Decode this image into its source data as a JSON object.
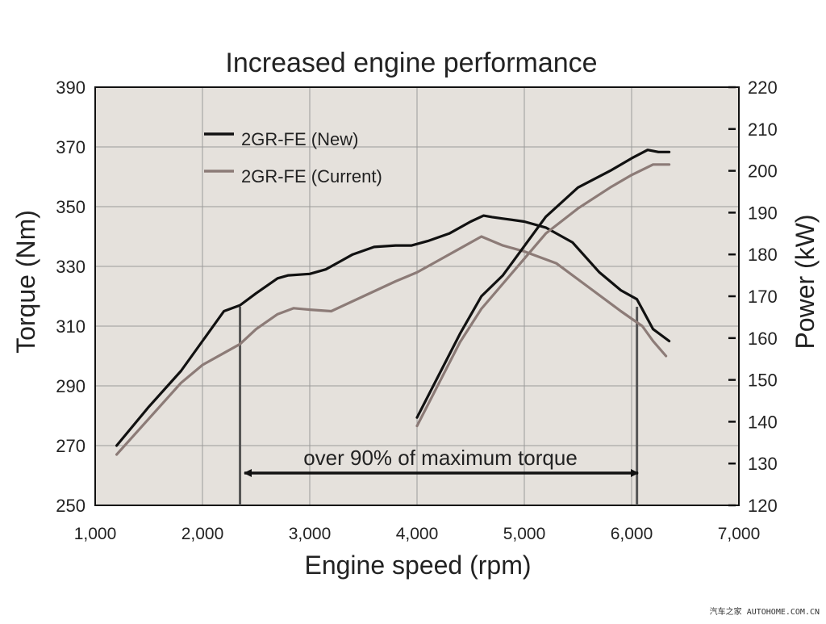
{
  "chart_data": {
    "type": "line",
    "title": "Increased engine performance",
    "xlabel": "Engine speed (rpm)",
    "ylabel_left": "Torque (Nm)",
    "ylabel_right": "Power (kW)",
    "xlim": [
      1000,
      7000
    ],
    "ylim_left": [
      250,
      390
    ],
    "ylim_right": [
      120,
      220
    ],
    "x_ticks": [
      1000,
      2000,
      3000,
      4000,
      5000,
      6000,
      7000
    ],
    "x_tick_labels": [
      "1,000",
      "2,000",
      "3,000",
      "4,000",
      "5,000",
      "6,000",
      "7,000"
    ],
    "y_left_ticks": [
      250,
      270,
      290,
      310,
      330,
      350,
      370,
      390
    ],
    "y_left_tick_labels": [
      "250",
      "270",
      "290",
      "310",
      "330",
      "350",
      "370",
      "390"
    ],
    "y_right_ticks": [
      120,
      130,
      140,
      150,
      160,
      170,
      180,
      190,
      200,
      210,
      220
    ],
    "y_right_tick_labels": [
      "120",
      "130",
      "140",
      "150",
      "160",
      "170",
      "180",
      "190",
      "200",
      "210",
      "220"
    ],
    "grid": true,
    "legend_position": "top-left",
    "colors": {
      "plot_background": "#e5e1dc",
      "grid": "#9a9a9a",
      "new": "#111111",
      "current": "#8c7b77",
      "marker": "#555555"
    },
    "series": [
      {
        "name": "2GR-FE (New)",
        "axis": "left",
        "color": "#111111",
        "x": [
          1200,
          1500,
          1800,
          2000,
          2200,
          2350,
          2500,
          2700,
          2800,
          3000,
          3150,
          3300,
          3400,
          3600,
          3800,
          3950,
          4100,
          4300,
          4500,
          4620,
          4700,
          4800,
          5000,
          5200,
          5450,
          5700,
          5900,
          6050,
          6200,
          6350
        ],
        "y": [
          270,
          283,
          295,
          305,
          315,
          317,
          321,
          326,
          327,
          327.5,
          329,
          332,
          334,
          336.5,
          337,
          337,
          338.5,
          341,
          345,
          347,
          346.5,
          346,
          345,
          343,
          338,
          328,
          322,
          319,
          309,
          305
        ]
      },
      {
        "name": "2GR-FE (Current)",
        "axis": "left",
        "color": "#8c7b77",
        "x": [
          1200,
          1500,
          1800,
          2000,
          2200,
          2350,
          2500,
          2700,
          2850,
          3000,
          3200,
          3500,
          3800,
          4000,
          4200,
          4400,
          4600,
          4800,
          5000,
          5300,
          5600,
          5900,
          6100,
          6200,
          6320
        ],
        "y": [
          267,
          279,
          291,
          297,
          301,
          304,
          309,
          314,
          316,
          315.5,
          315,
          320,
          325,
          328,
          332,
          336,
          340,
          337,
          335,
          331,
          323,
          315,
          310,
          305,
          300
        ]
      },
      {
        "name": "2GR-FE (New) power",
        "axis": "right",
        "color": "#111111",
        "x": [
          4000,
          4200,
          4400,
          4600,
          4800,
          5000,
          5200,
          5500,
          5800,
          6000,
          6150,
          6250,
          6350
        ],
        "y": [
          141,
          151,
          161,
          170,
          175,
          182,
          189,
          196,
          200,
          203,
          205,
          204.5,
          204.5
        ]
      },
      {
        "name": "2GR-FE (Current) power",
        "axis": "right",
        "color": "#8c7b77",
        "x": [
          4000,
          4200,
          4400,
          4600,
          4800,
          5000,
          5200,
          5500,
          5800,
          6000,
          6200,
          6350
        ],
        "y": [
          139,
          149,
          159,
          167,
          173,
          179,
          185,
          191,
          196,
          199,
          201.5,
          201.5
        ]
      }
    ],
    "range_markers": [
      2350,
      6050
    ],
    "annotation": "over 90% of maximum torque"
  },
  "watermark": "汽车之家 AUTOHOME.COM.CN"
}
